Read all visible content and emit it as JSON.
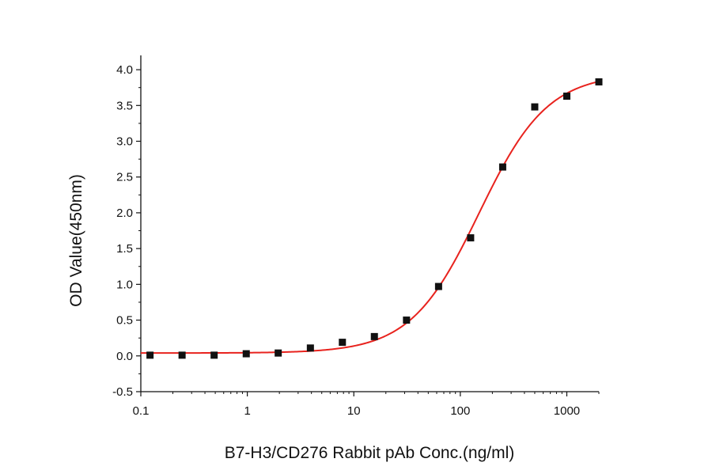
{
  "chart_data": {
    "type": "scatter",
    "title": "",
    "xlabel": "B7-H3/CD276 Rabbit pAb Conc.(ng/ml)",
    "ylabel": "OD Value(450nm)",
    "x_scale": "log",
    "xlim": [
      0.1,
      2000
    ],
    "ylim": [
      -0.5,
      4.2
    ],
    "x_ticks": [
      {
        "value": 0.1,
        "label": "0.1"
      },
      {
        "value": 1,
        "label": "1"
      },
      {
        "value": 10,
        "label": "10"
      },
      {
        "value": 100,
        "label": "100"
      },
      {
        "value": 1000,
        "label": "1000"
      }
    ],
    "y_ticks": [
      {
        "value": -0.5,
        "label": "-0.5"
      },
      {
        "value": 0.0,
        "label": "0.0"
      },
      {
        "value": 0.5,
        "label": "0.5"
      },
      {
        "value": 1.0,
        "label": "1.0"
      },
      {
        "value": 1.5,
        "label": "1.5"
      },
      {
        "value": 2.0,
        "label": "2.0"
      },
      {
        "value": 2.5,
        "label": "2.5"
      },
      {
        "value": 3.0,
        "label": "3.0"
      },
      {
        "value": 3.5,
        "label": "3.5"
      },
      {
        "value": 4.0,
        "label": "4.0"
      }
    ],
    "grid": false,
    "legend": "none",
    "series": [
      {
        "x": [
          0.122,
          0.244,
          0.488,
          0.977,
          1.95,
          3.91,
          7.81,
          15.6,
          31.25,
          62.5,
          125,
          250,
          500,
          1000,
          2000
        ],
        "y": [
          0.01,
          0.01,
          0.01,
          0.03,
          0.04,
          0.11,
          0.19,
          0.27,
          0.5,
          0.97,
          1.65,
          2.64,
          3.48,
          3.63,
          3.83
        ],
        "marker": "square",
        "color": "#111111"
      }
    ],
    "fit_curve": {
      "model": "4PL",
      "bottom": 0.04,
      "top": 3.95,
      "ec50": 150,
      "hill": 1.35,
      "color": "#e8231e"
    }
  }
}
